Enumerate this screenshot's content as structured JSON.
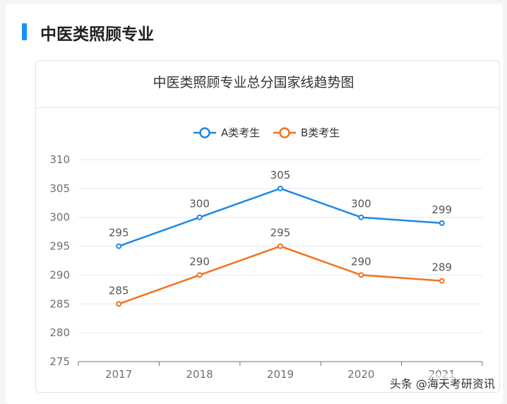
{
  "page": {
    "heading": "中医类照顾专业",
    "watermark": "头条 @海天考研资讯"
  },
  "colors": {
    "accent": "#1890ff",
    "series_a": "#1e88e5",
    "series_b": "#f4711e",
    "grid": "#e3e8f0",
    "axis": "#6e7079",
    "tick_text": "#6e7079",
    "label_text": "#555555"
  },
  "chart_data": {
    "type": "line",
    "title": "中医类照顾专业总分国家线趋势图",
    "categories": [
      "2017",
      "2018",
      "2019",
      "2020",
      "2021"
    ],
    "series": [
      {
        "name": "A类考生",
        "values": [
          295,
          300,
          305,
          300,
          299
        ]
      },
      {
        "name": "B类考生",
        "values": [
          285,
          290,
          295,
          290,
          289
        ]
      }
    ],
    "ylim": [
      275,
      310
    ],
    "yticks": [
      275,
      280,
      285,
      290,
      295,
      300,
      305,
      310
    ],
    "xlabel": "",
    "ylabel": "",
    "grid": true,
    "legend": "top-center",
    "data_labels": true
  }
}
